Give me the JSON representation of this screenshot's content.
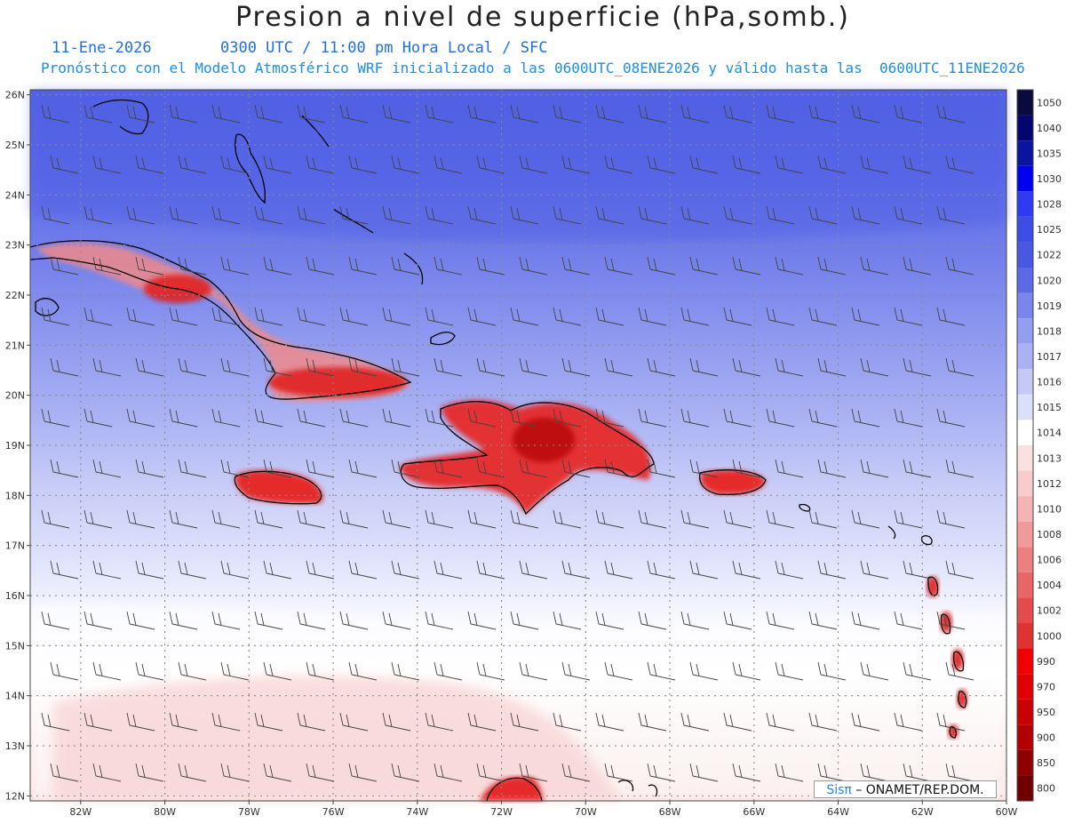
{
  "header": {
    "title": "Presion a nivel de superficie (hPa,somb.)",
    "date": "11-Ene-2026",
    "time": "0300 UTC / 11:00 pm Hora Local / SFC",
    "model": "Pronóstico con el Modelo Atmosférico WRF inicializado a las 0600UTC_08ENE2026 y válido hasta las  0600UTC_11ENE2026"
  },
  "map": {
    "lon_range": [
      -83.2,
      -60.0
    ],
    "lat_range": [
      11.9,
      26.1
    ],
    "lat_ticks": [
      "26N",
      "25N",
      "24N",
      "23N",
      "22N",
      "21N",
      "20N",
      "19N",
      "18N",
      "17N",
      "16N",
      "15N",
      "14N",
      "13N",
      "12N"
    ],
    "lon_ticks": [
      "82W",
      "80W",
      "78W",
      "76W",
      "74W",
      "72W",
      "70W",
      "68W",
      "66W",
      "64W",
      "62W",
      "60W"
    ]
  },
  "colorbar": {
    "levels": [
      "1050",
      "1040",
      "1035",
      "1030",
      "1028",
      "1025",
      "1022",
      "1020",
      "1019",
      "1018",
      "1017",
      "1016",
      "1015",
      "1014",
      "1013",
      "1012",
      "1010",
      "1008",
      "1006",
      "1004",
      "1002",
      "1000",
      "990",
      "970",
      "950",
      "900",
      "850",
      "800"
    ],
    "colors": [
      "#0a0a3c",
      "#050570",
      "#0a14a0",
      "#0000f0",
      "#2d3cf0",
      "#3c4ee6",
      "#4858e0",
      "#5c6ae6",
      "#7a86ec",
      "#949ef0",
      "#aab2f3",
      "#c4c9f6",
      "#dcdffa",
      "#ffffff",
      "#fbe0e0",
      "#f8cccc",
      "#f4b4b4",
      "#f09a9a",
      "#ec8080",
      "#e86666",
      "#e44c4c",
      "#e03232",
      "#f00000",
      "#e00000",
      "#c80000",
      "#b00000",
      "#900000",
      "#700000"
    ]
  },
  "credit": {
    "sis": "Sisπ",
    "rest": " – ONAMET/REP.DOM."
  }
}
